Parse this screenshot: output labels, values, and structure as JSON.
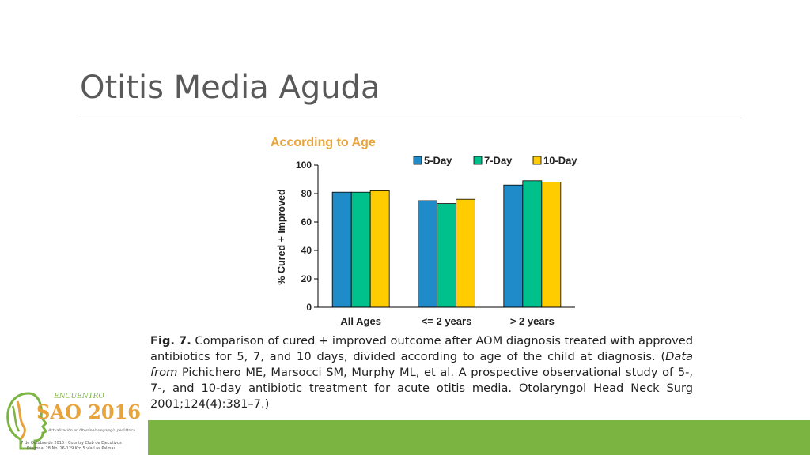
{
  "slide": {
    "title": "Otitis Media Aguda"
  },
  "chart_data": {
    "type": "bar",
    "title": "According to Age",
    "ylabel": "% Cured + Improved",
    "xlabel": "",
    "ylim": [
      0,
      100
    ],
    "yticks": [
      0,
      20,
      40,
      60,
      80,
      100
    ],
    "categories": [
      "All Ages",
      "<= 2 years",
      "> 2 years"
    ],
    "series": [
      {
        "name": "5-Day",
        "values": [
          81,
          75,
          86
        ],
        "color": "#1f8bc9"
      },
      {
        "name": "7-Day",
        "values": [
          81,
          73,
          89
        ],
        "color": "#00c08b"
      },
      {
        "name": "10-Day",
        "values": [
          82,
          76,
          88
        ],
        "color": "#ffcc00"
      }
    ],
    "legend_position": "top-right",
    "grid": false
  },
  "caption": {
    "fig_label": "Fig. 7.",
    "text": "Comparison of cured + improved outcome after AOM diagnosis treated with approved antibiotics for 5, 7, and 10 days, divided according to age of the child at diagnosis. (",
    "data_from": "Data from",
    "citation": "Pichichero ME, Marsocci SM, Murphy ML, et al. A prospective observational study of 5-, 7-, and 10-day antibiotic treatment for acute otitis media. Otolaryngol Head Neck Surg 2001;124(4):381–7.)"
  },
  "logo": {
    "encuentro": "ENCUENTRO",
    "sao": "SAO 2016",
    "subtitle": "Actualización en Otorrinolaringología pediátrica",
    "footer_line1": "7 de Octubre de 2016 - Country Club de Ejecutivos",
    "footer_line2": "Diagonal 28 No. 16-129 Km 5 vía Las Palmas",
    "primary_color": "#7cb442",
    "accent_color": "#e8a33a"
  }
}
